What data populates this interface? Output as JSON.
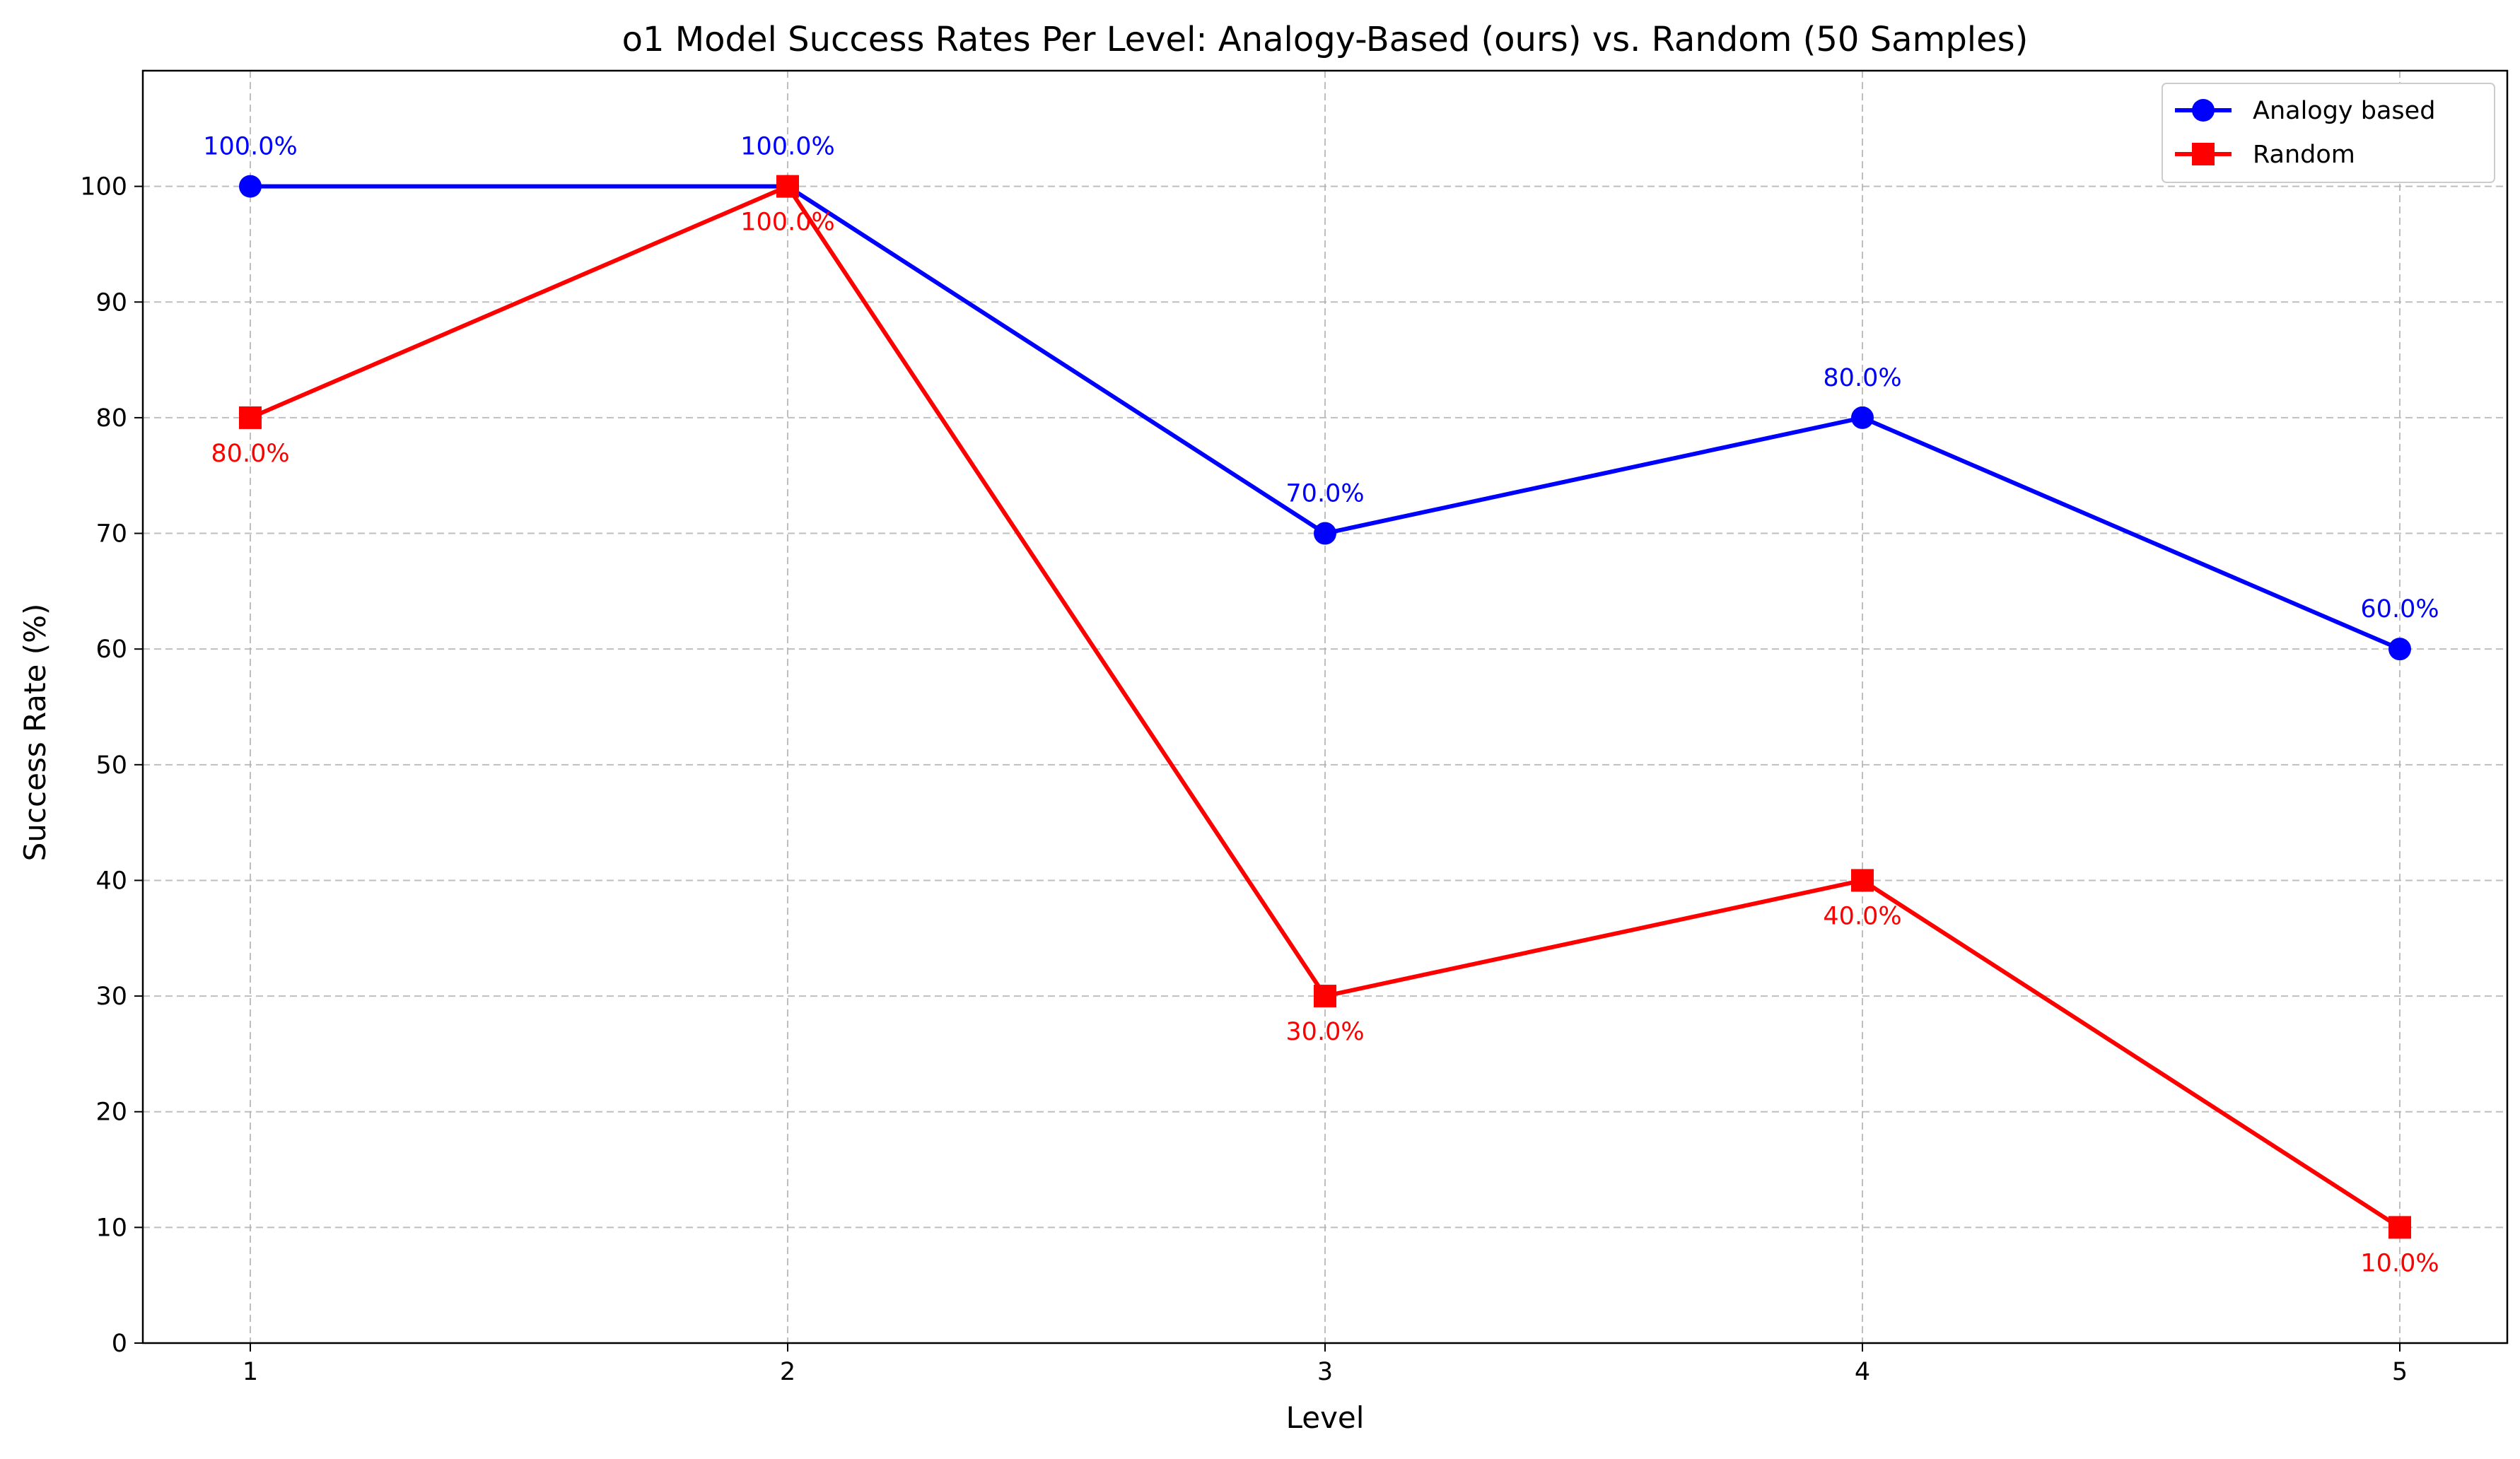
{
  "chart_data": {
    "type": "line",
    "title": "o1 Model Success Rates Per Level: Analogy-Based (ours) vs. Random (50 Samples)",
    "xlabel": "Level",
    "ylabel": "Success Rate (%)",
    "x": [
      1,
      2,
      3,
      4,
      5
    ],
    "xticks": [
      "1",
      "2",
      "3",
      "4",
      "5"
    ],
    "xlim": [
      0.8,
      5.2
    ],
    "ylim": [
      0,
      110
    ],
    "yticks": [
      0,
      10,
      20,
      30,
      40,
      50,
      60,
      70,
      80,
      90,
      100
    ],
    "grid": true,
    "legend_position": "top-right",
    "series": [
      {
        "name": "Analogy based",
        "color": "#0000ff",
        "marker": "circle",
        "values": [
          100,
          100,
          70,
          80,
          60
        ],
        "labels": [
          "100.0%",
          "100.0%",
          "70.0%",
          "80.0%",
          "60.0%"
        ],
        "label_position": "above"
      },
      {
        "name": "Random",
        "color": "#ff0000",
        "marker": "square",
        "values": [
          80,
          100,
          30,
          40,
          10
        ],
        "labels": [
          "80.0%",
          "100.0%",
          "30.0%",
          "40.0%",
          "10.0%"
        ],
        "label_position": "below"
      }
    ]
  }
}
